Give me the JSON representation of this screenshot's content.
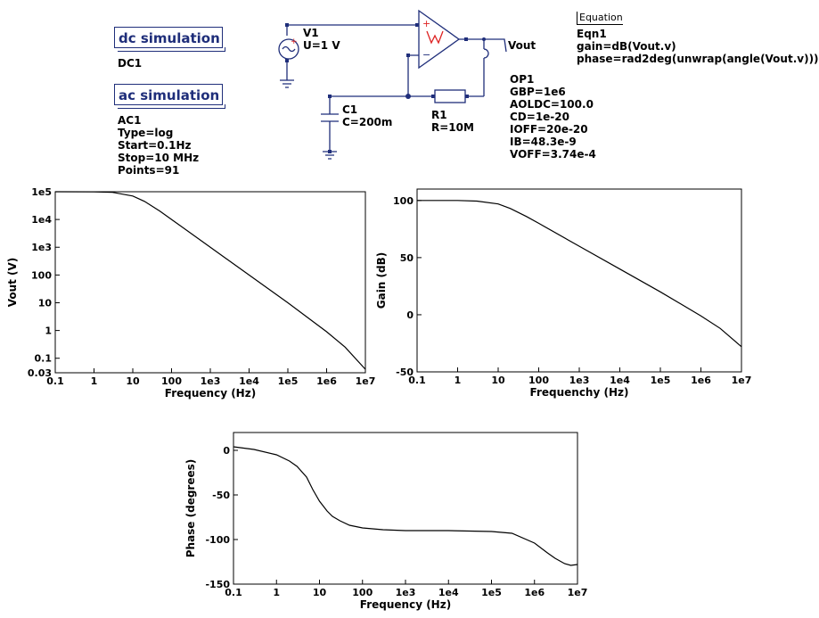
{
  "schematic": {
    "dc_sim": {
      "title": "dc simulation",
      "name": "DC1"
    },
    "ac_sim": {
      "title": "ac simulation",
      "lines": [
        "AC1",
        "Type=log",
        "Start=0.1Hz",
        "Stop=10 MHz",
        "Points=91"
      ]
    },
    "source": {
      "name": "V1",
      "value": "U=1 V"
    },
    "capacitor": {
      "name": "C1",
      "value": "C=200m"
    },
    "resistor": {
      "name": "R1",
      "value": "R=10M"
    },
    "output_label": "Vout",
    "opamp": {
      "lines": [
        "OP1",
        "GBP=1e6",
        "AOLDC=100.0",
        "CD=1e-20",
        "IOFF=20e-20",
        "IB=48.3e-9",
        "VOFF=3.74e-4"
      ]
    },
    "equation": {
      "header": "Equation",
      "lines": [
        "Eqn1",
        "gain=dB(Vout.v)",
        "phase=rad2deg(unwrap(angle(Vout.v)))"
      ]
    }
  },
  "colors": {
    "wire": "#1f2e7a",
    "opamp": "#1f2e7a",
    "plus": "#d22",
    "plot_line": "#000000"
  },
  "chart_data": [
    {
      "type": "line",
      "xlabel": "Frequency (Hz)",
      "ylabel": "Vout (V)",
      "x_scale": "log",
      "y_scale": "log",
      "xlim": [
        0.1,
        10000000
      ],
      "ylim": [
        0.03,
        100000
      ],
      "x_ticks": [
        "0.1",
        "1",
        "10",
        "100",
        "1e3",
        "1e4",
        "1e5",
        "1e6",
        "1e7"
      ],
      "y_ticks": [
        "0.03",
        "0.1",
        "1",
        "10",
        "100",
        "1e3",
        "1e4",
        "1e5"
      ],
      "x": [
        0.1,
        1,
        3,
        10,
        20,
        50,
        100,
        1000,
        10000,
        100000,
        1000000,
        3000000,
        10000000
      ],
      "y": [
        100000,
        99500,
        95000,
        70000,
        45000,
        20000,
        10000,
        1000,
        100,
        10,
        0.9,
        0.25,
        0.04
      ]
    },
    {
      "type": "line",
      "xlabel": "Frequenchy (Hz)",
      "ylabel": "Gain (dB)",
      "x_scale": "log",
      "xlim": [
        0.1,
        10000000
      ],
      "ylim": [
        -50,
        110
      ],
      "x_ticks": [
        "0.1",
        "1",
        "10",
        "100",
        "1e3",
        "1e4",
        "1e5",
        "1e6",
        "1e7"
      ],
      "y_ticks": [
        "-50",
        "0",
        "50",
        "100"
      ],
      "x": [
        0.1,
        1,
        3,
        10,
        20,
        50,
        100,
        1000,
        10000,
        100000,
        1000000,
        3000000,
        10000000
      ],
      "y": [
        100,
        100,
        99.5,
        97,
        93,
        86,
        80,
        60,
        40,
        20,
        -1,
        -12,
        -28
      ]
    },
    {
      "type": "line",
      "xlabel": "Frequency (Hz)",
      "ylabel": "Phase (degrees)",
      "x_scale": "log",
      "xlim": [
        0.1,
        10000000
      ],
      "ylim": [
        -150,
        20
      ],
      "x_ticks": [
        "0.1",
        "1",
        "10",
        "100",
        "1e3",
        "1e4",
        "1e5",
        "1e6",
        "1e7"
      ],
      "y_ticks": [
        "-150",
        "-100",
        "-50",
        "0"
      ],
      "x": [
        0.1,
        0.3,
        1,
        2,
        3,
        5,
        7,
        10,
        15,
        20,
        30,
        50,
        100,
        300,
        1000,
        10000,
        100000,
        300000,
        1000000,
        2000000,
        3000000,
        5000000,
        7000000,
        10000000
      ],
      "y": [
        4,
        1,
        -5,
        -12,
        -18,
        -30,
        -44,
        -57,
        -68,
        -74,
        -79,
        -84,
        -87,
        -89,
        -90,
        -90,
        -91,
        -93,
        -104,
        -115,
        -121,
        -127,
        -129,
        -128
      ]
    }
  ]
}
